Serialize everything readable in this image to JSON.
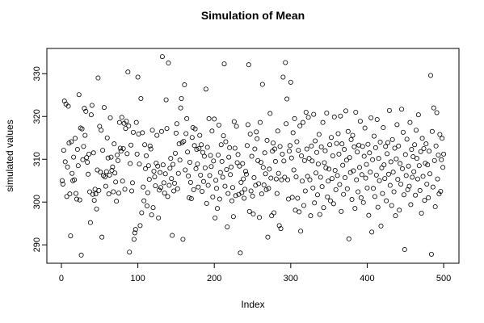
{
  "chart_data": {
    "type": "scatter",
    "title": "Simulation of Mean",
    "xlabel": "Index",
    "ylabel": "simulated values",
    "xlim": [
      -19,
      520
    ],
    "ylim": [
      285.7,
      335.9
    ],
    "x_ticks": [
      0,
      100,
      200,
      300,
      400,
      500
    ],
    "y_ticks": [
      290,
      300,
      310,
      320,
      330
    ],
    "grid": false,
    "legend": false,
    "colors": {
      "points": "#000000",
      "axes": "#000000",
      "background": "#ffffff"
    },
    "values": [
      305.0,
      304.2,
      312.1,
      323.6,
      309.4,
      322.9,
      301.3,
      308.2,
      322.4,
      313.8,
      301.9,
      292.1,
      314.1,
      306.7,
      305.0,
      310.5,
      305.2,
      314.9,
      302.0,
      300.7,
      312.3,
      308.5,
      325.1,
      300.5,
      317.3,
      287.6,
      317.1,
      309.9,
      313.0,
      321.9,
      315.6,
      321.2,
      310.4,
      309.3,
      306.5,
      311.2,
      302.4,
      295.2,
      320.4,
      322.6,
      301.8,
      311.5,
      300.4,
      303.0,
      301.9,
      298.4,
      307.5,
      329.0,
      302.7,
      317.7,
      307.0,
      316.8,
      291.8,
      312.1,
      306.2,
      322.1,
      305.9,
      303.7,
      307.1,
      315.0,
      310.3,
      301.9,
      306.3,
      319.7,
      310.5,
      307.4,
      308.2,
      302.4,
      313.6,
      306.8,
      304.7,
      300.2,
      311.0,
      309.7,
      302.1,
      318.6,
      312.6,
      311.9,
      319.8,
      304.9,
      312.5,
      318.4,
      303.0,
      317.2,
      318.9,
      311.3,
      330.4,
      317.8,
      288.3,
      309.0,
      313.3,
      302.6,
      304.5,
      316.3,
      291.3,
      292.8,
      293.6,
      318.6,
      311.2,
      329.2,
      315.9,
      308.9,
      294.5,
      324.2,
      297.5,
      316.2,
      303.5,
      300.3,
      313.4,
      307.8,
      310.8,
      299.1,
      302.2,
      308.5,
      305.3,
      313.1,
      312.4,
      297.0,
      316.8,
      298.7,
      307.2,
      305.9,
      303.8,
      309.1,
      315.6,
      308.4,
      296.3,
      302.8,
      306.9,
      303.4,
      316.5,
      334.0,
      308.7,
      304.5,
      302.1,
      306.6,
      323.9,
      317.2,
      301.3,
      332.5,
      303.9,
      307.9,
      310.2,
      305.5,
      292.2,
      308.8,
      302.6,
      304.4,
      311.4,
      316.1,
      318.3,
      303.1,
      306.7,
      313.6,
      309.8,
      322.0,
      324.2,
      313.9,
      291.3,
      314.2,
      327.4,
      307.5,
      316.0,
      319.5,
      311.7,
      306.1,
      301.0,
      309.3,
      304.6,
      300.8,
      315.1,
      317.4,
      302.9,
      313.2,
      317.1,
      307.8,
      312.3,
      308.9,
      303.5,
      312.5,
      315.6,
      306.3,
      313.4,
      302.5,
      311.6,
      304.8,
      310.7,
      308.0,
      326.4,
      299.7,
      312.8,
      303.9,
      319.5,
      306.2,
      310.9,
      308.3,
      316.6,
      301.2,
      309.6,
      319.4,
      296.3,
      305.1,
      303.2,
      298.5,
      311.0,
      318.0,
      300.7,
      306.9,
      313.4,
      309.5,
      305.8,
      315.5,
      332.3,
      303.7,
      314.1,
      307.6,
      294.2,
      302.0,
      310.5,
      312.7,
      306.4,
      308.2,
      300.3,
      303.4,
      296.6,
      318.8,
      312.6,
      301.5,
      317.7,
      309.2,
      311.1,
      301.8,
      308.4,
      288.1,
      304.6,
      302.2,
      309.0,
      305.4,
      300.9,
      303.0,
      307.2,
      306.5,
      313.2,
      318.1,
      332.1,
      297.8,
      315.9,
      302.6,
      310.7,
      301.4,
      297.2,
      305.7,
      312.4,
      303.9,
      316.4,
      314.8,
      309.7,
      304.3,
      296.4,
      318.6,
      309.3,
      301.9,
      327.5,
      308.1,
      304.0,
      311.5,
      306.6,
      302.9,
      314.4,
      291.8,
      303.2,
      307.7,
      320.7,
      305.6,
      296.8,
      311.9,
      313.8,
      297.5,
      312.4,
      309.5,
      305.4,
      302.0,
      316.6,
      306.7,
      294.5,
      313.0,
      293.8,
      305.2,
      311.2,
      329.2,
      309.6,
      305.8,
      332.6,
      318.3,
      324.1,
      305.2,
      300.7,
      311.9,
      313.2,
      328.0,
      310.3,
      301.1,
      316.2,
      307.5,
      319.5,
      298.1,
      305.9,
      314.1,
      300.9,
      312.1,
      297.7,
      317.8,
      293.2,
      310.8,
      304.9,
      318.6,
      299.2,
      309.7,
      302.6,
      321.0,
      312.4,
      306.0,
      319.8,
      310.2,
      305.2,
      296.8,
      313.1,
      309.6,
      303.3,
      320.5,
      299.8,
      314.3,
      306.8,
      311.6,
      301.7,
      308.9,
      315.8,
      297.1,
      305.8,
      312.9,
      303.6,
      318.6,
      298.7,
      309.2,
      312.0,
      308.0,
      320.8,
      301.2,
      304.9,
      307.7,
      313.4,
      300.3,
      315.1,
      305.5,
      310.8,
      299.6,
      319.9,
      307.4,
      302.9,
      313.7,
      306.2,
      316.0,
      311.2,
      304.1,
      320.1,
      297.8,
      313.6,
      308.6,
      301.8,
      312.3,
      305.7,
      321.3,
      309.8,
      303.1,
      316.5,
      291.4,
      310.4,
      306.9,
      314.6,
      300.6,
      315.6,
      307.3,
      312.9,
      298.5,
      321.0,
      305.2,
      311.7,
      302.4,
      313.3,
      308.1,
      318.9,
      301.0,
      306.4,
      313.0,
      299.9,
      310.7,
      317.3,
      305.6,
      308.8,
      303.3,
      313.5,
      296.9,
      311.5,
      307.0,
      319.7,
      293.0,
      309.9,
      303.2,
      315.4,
      301.3,
      312.7,
      306.3,
      319.3,
      298.8,
      310.2,
      305.0,
      314.0,
      294.4,
      308.0,
      302.0,
      317.4,
      308.7,
      305.5,
      313.0,
      300.3,
      311.3,
      313.9,
      306.5,
      321.4,
      303.9,
      309.4,
      299.2,
      314.6,
      307.0,
      302.4,
      312.6,
      296.8,
      310.1,
      318.1,
      305.3,
      313.1,
      298.1,
      309.0,
      304.2,
      321.7,
      307.8,
      316.3,
      301.7,
      288.9,
      311.1,
      306.2,
      314.7,
      302.9,
      308.4,
      303.7,
      318.6,
      299.4,
      312.3,
      305.8,
      310.6,
      307.1,
      313.4,
      301.6,
      316.8,
      310.2,
      305.4,
      320.4,
      308.5,
      302.7,
      311.8,
      297.4,
      314.9,
      306.0,
      312.5,
      300.4,
      309.1,
      313.6,
      304.2,
      308.7,
      301.0,
      311.9,
      306.6,
      329.6,
      287.8,
      316.5,
      303.5,
      322.0,
      309.7,
      298.9,
      313.1,
      320.9,
      305.4,
      311.0,
      301.9,
      315.8,
      302.5,
      309.9,
      314.9,
      308.1,
      311.2
    ]
  }
}
